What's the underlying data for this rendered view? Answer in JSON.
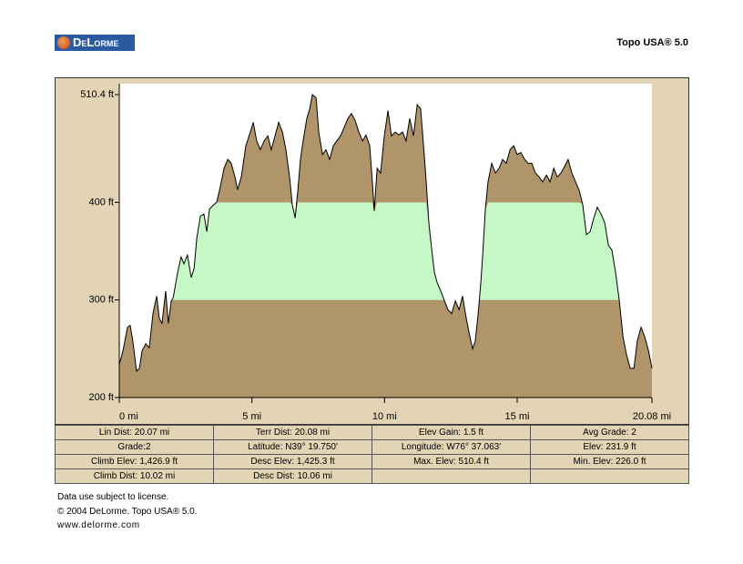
{
  "header": {
    "logo": "DeLorme",
    "product": "Topo USA® 5.0"
  },
  "chart_data": {
    "type": "area",
    "x": [
      0.0,
      0.14,
      0.31,
      0.41,
      0.51,
      0.65,
      0.76,
      0.86,
      1.0,
      1.13,
      1.27,
      1.41,
      1.51,
      1.61,
      1.75,
      1.85,
      1.96,
      2.03,
      2.2,
      2.33,
      2.44,
      2.57,
      2.71,
      2.82,
      2.92,
      3.06,
      3.19,
      3.3,
      3.4,
      3.54,
      3.67,
      3.81,
      3.95,
      4.09,
      4.22,
      4.36,
      4.46,
      4.6,
      4.77,
      4.94,
      5.05,
      5.18,
      5.32,
      5.46,
      5.6,
      5.73,
      5.87,
      6.01,
      6.15,
      6.28,
      6.42,
      6.52,
      6.63,
      6.73,
      6.83,
      6.93,
      7.07,
      7.18,
      7.28,
      7.42,
      7.52,
      7.66,
      7.79,
      7.93,
      8.07,
      8.2,
      8.34,
      8.48,
      8.62,
      8.75,
      8.89,
      9.03,
      9.17,
      9.3,
      9.44,
      9.54,
      9.61,
      9.72,
      9.85,
      9.99,
      10.13,
      10.26,
      10.4,
      10.54,
      10.68,
      10.81,
      10.95,
      11.09,
      11.23,
      11.36,
      11.47,
      11.57,
      11.67,
      11.78,
      11.88,
      11.98,
      12.12,
      12.26,
      12.39,
      12.53,
      12.67,
      12.81,
      12.94,
      13.08,
      13.22,
      13.32,
      13.42,
      13.53,
      13.63,
      13.7,
      13.8,
      13.9,
      14.04,
      14.18,
      14.32,
      14.45,
      14.59,
      14.73,
      14.87,
      15.0,
      15.14,
      15.28,
      15.41,
      15.55,
      15.69,
      15.83,
      15.96,
      16.1,
      16.24,
      16.38,
      16.51,
      16.65,
      16.79,
      16.92,
      17.06,
      17.2,
      17.34,
      17.47,
      17.61,
      17.75,
      17.89,
      18.02,
      18.16,
      18.3,
      18.44,
      18.57,
      18.71,
      18.85,
      18.99,
      19.12,
      19.26,
      19.4,
      19.53,
      19.67,
      19.81,
      19.95,
      20.08
    ],
    "values": [
      234,
      248,
      272,
      274,
      258,
      227,
      230,
      248,
      255,
      251,
      286,
      304,
      281,
      276,
      309,
      276,
      299,
      302,
      328,
      344,
      337,
      346,
      323,
      332,
      363,
      386,
      388,
      370,
      393,
      397,
      400,
      416,
      435,
      444,
      440,
      426,
      413,
      426,
      458,
      472,
      482,
      463,
      454,
      463,
      468,
      454,
      468,
      482,
      472,
      454,
      426,
      398,
      384,
      412,
      444,
      463,
      486,
      496,
      510.4,
      507,
      472,
      449,
      454,
      444,
      458,
      463,
      468,
      477,
      486,
      491,
      484,
      472,
      463,
      469,
      458,
      421,
      391,
      435,
      430,
      468,
      494,
      468,
      472,
      469,
      472,
      463,
      486,
      468,
      500,
      496,
      458,
      421,
      379,
      351,
      328,
      318,
      309,
      299,
      290,
      286,
      299,
      290,
      304,
      281,
      262,
      250,
      258,
      286,
      318,
      346,
      393,
      421,
      440,
      430,
      435,
      444,
      440,
      454,
      458,
      449,
      451,
      444,
      440,
      440,
      430,
      426,
      421,
      428,
      421,
      435,
      426,
      430,
      437,
      444,
      430,
      421,
      412,
      398,
      367,
      370,
      384,
      395,
      388,
      379,
      356,
      351,
      328,
      299,
      262,
      244,
      230,
      230,
      258,
      272,
      262,
      248,
      230
    ],
    "xlim": [
      0,
      20.08
    ],
    "xticks": [
      {
        "value": 0,
        "label": "0 mi"
      },
      {
        "value": 5,
        "label": "5 mi"
      },
      {
        "value": 10,
        "label": "10 mi"
      },
      {
        "value": 15,
        "label": "15 mi"
      },
      {
        "value": 20.08,
        "label": "20.08 mi"
      }
    ],
    "ylim": [
      200,
      510.4
    ],
    "yticks": [
      {
        "value": 200,
        "label": "200 ft"
      },
      {
        "value": 300,
        "label": "300 ft"
      },
      {
        "value": 400,
        "label": "400 ft"
      },
      {
        "value": 510.4,
        "label": "510.4 ft"
      }
    ],
    "color": "#b0946a",
    "line_color": "#000000",
    "highlight_band": [
      300,
      400
    ],
    "band_color": "#c6f7c6"
  },
  "stats": [
    [
      "Lin Dist: 20.07 mi",
      "Terr Dist: 20.08 mi",
      "Elev Gain: 1.5 ft",
      "Avg Grade: 2"
    ],
    [
      "Grade:2",
      "Latitude: N39° 19.750'",
      "Longitude: W76° 37.063'",
      "Elev: 231.9 ft"
    ],
    [
      "Climb Elev: 1,426.9 ft",
      "Desc Elev: 1,425.3 ft",
      "Max. Elev: 510.4 ft",
      "Min. Elev: 226.0 ft"
    ],
    [
      "Climb Dist: 10.02 mi",
      "Desc Dist: 10.06 mi"
    ]
  ],
  "footer": [
    "Data use subject to license.",
    "© 2004 DeLorme. Topo USA® 5.0.",
    "www.delorme.com"
  ]
}
